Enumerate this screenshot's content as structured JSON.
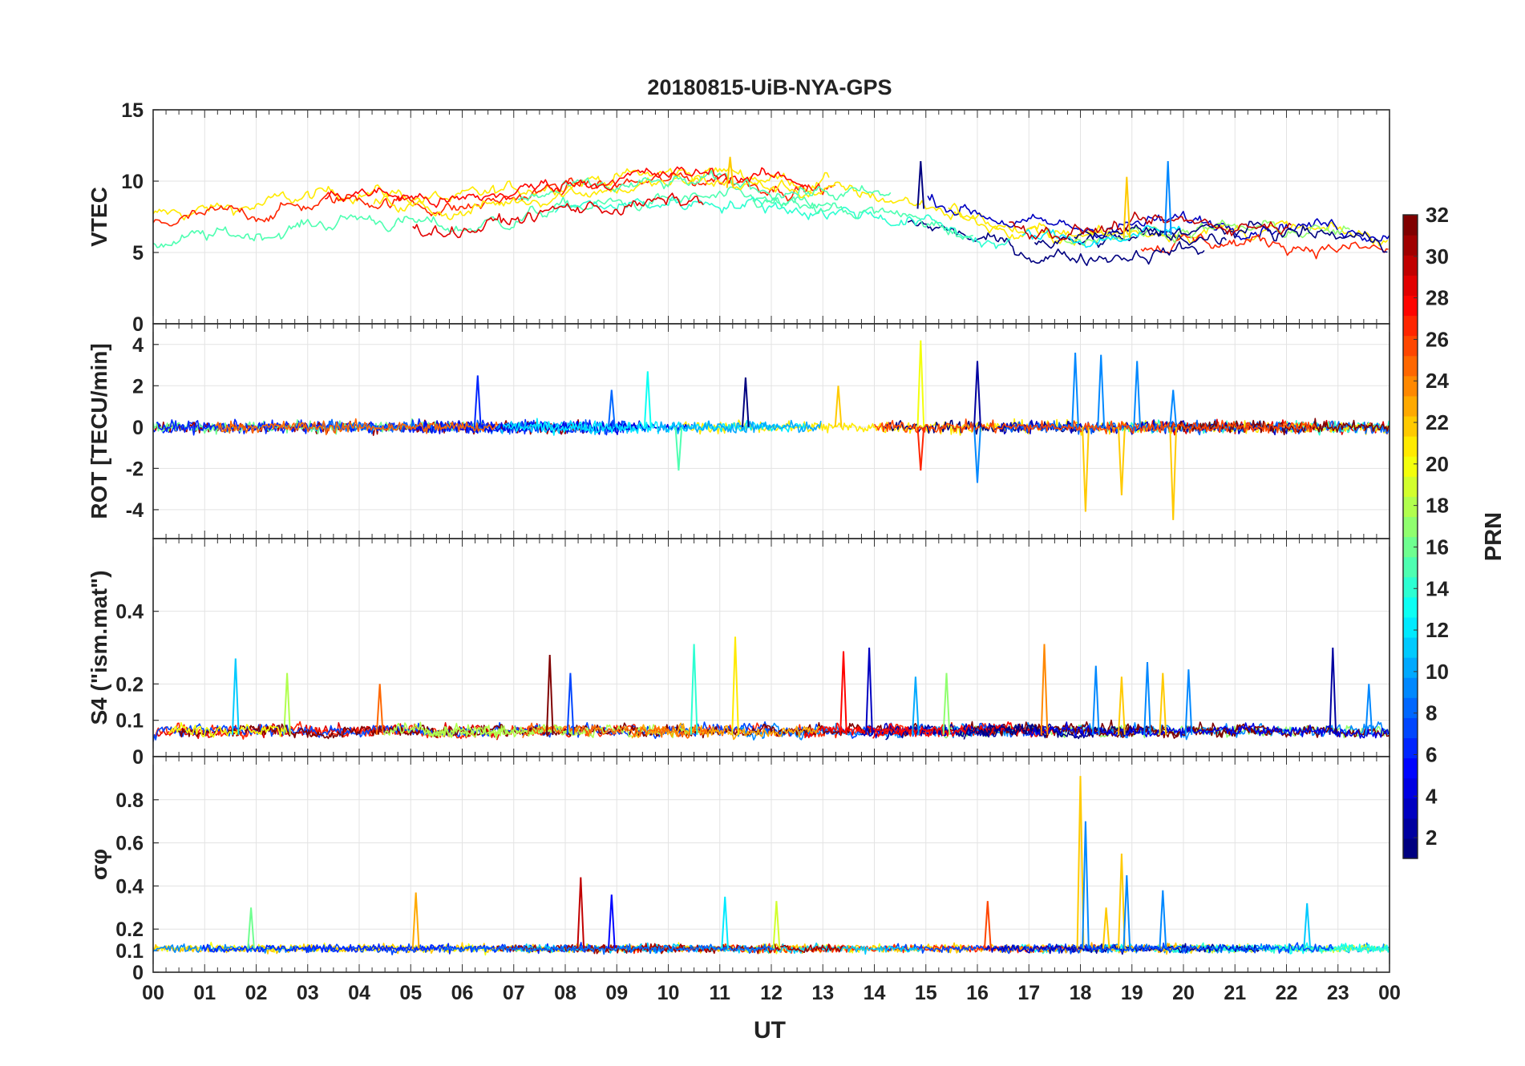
{
  "chart_data": {
    "type": "line",
    "title": "20180815-UiB-NYA-GPS",
    "xlabel": "UT",
    "x_ticks": [
      "00",
      "01",
      "02",
      "03",
      "04",
      "05",
      "06",
      "07",
      "08",
      "09",
      "10",
      "11",
      "12",
      "13",
      "14",
      "15",
      "16",
      "17",
      "18",
      "19",
      "20",
      "21",
      "22",
      "23",
      "00"
    ],
    "x_range_hours": [
      0,
      24
    ],
    "colorbar": {
      "label": "PRN",
      "range": [
        1,
        32
      ],
      "ticks": [
        "2",
        "4",
        "6",
        "8",
        "10",
        "12",
        "14",
        "16",
        "18",
        "20",
        "22",
        "24",
        "26",
        "28",
        "30",
        "32"
      ],
      "colormap": "jet"
    },
    "panels": [
      {
        "id": "vtec",
        "ylabel": "VTEC",
        "ylim": [
          0,
          15
        ],
        "yticks": [
          "0",
          "5",
          "10",
          "15"
        ],
        "trend": [
          [
            0,
            6.5
          ],
          [
            2,
            7.2
          ],
          [
            4,
            8.3
          ],
          [
            6,
            7.5
          ],
          [
            8,
            9.0
          ],
          [
            10,
            9.4
          ],
          [
            11,
            9.6
          ],
          [
            12,
            9.2
          ],
          [
            14,
            8.6
          ],
          [
            15,
            8.0
          ],
          [
            16,
            7.0
          ],
          [
            17,
            6.0
          ],
          [
            18,
            5.8
          ],
          [
            20,
            6.3
          ],
          [
            22,
            6.2
          ],
          [
            24,
            5.6
          ]
        ],
        "noise": 1.1,
        "base_n": 14,
        "spikes": [
          [
            14.9,
            11.4
          ],
          [
            18.9,
            10.3
          ],
          [
            19.7,
            11.4
          ],
          [
            11.2,
            11.7
          ]
        ]
      },
      {
        "id": "rot",
        "ylabel": "ROT [TECU/min]",
        "ylim": [
          -5.4,
          5.0
        ],
        "yticks": [
          "-4",
          "-2",
          "0",
          "2",
          "4"
        ],
        "spikes": [
          [
            6.3,
            2.5
          ],
          [
            9.6,
            2.7
          ],
          [
            14.9,
            4.2
          ],
          [
            14.9,
            -2.1
          ],
          [
            16.0,
            3.2
          ],
          [
            16.0,
            -2.7
          ],
          [
            17.9,
            3.6
          ],
          [
            18.1,
            -4.1
          ],
          [
            18.4,
            3.5
          ],
          [
            18.8,
            -3.3
          ],
          [
            19.1,
            3.2
          ],
          [
            19.8,
            -4.5
          ],
          [
            19.8,
            1.8
          ],
          [
            11.5,
            2.4
          ],
          [
            8.9,
            1.8
          ],
          [
            10.2,
            -2.1
          ],
          [
            13.3,
            2.0
          ]
        ]
      },
      {
        "id": "s4",
        "ylabel": "S4 (\"ism.mat\")",
        "ylim": [
          0,
          0.6
        ],
        "yticks": [
          "0",
          "0.1",
          "0.2",
          "0.4"
        ],
        "spikes": [
          [
            1.6,
            0.27
          ],
          [
            2.6,
            0.23
          ],
          [
            4.4,
            0.2
          ],
          [
            7.7,
            0.28
          ],
          [
            8.1,
            0.23
          ],
          [
            10.5,
            0.31
          ],
          [
            11.3,
            0.33
          ],
          [
            13.4,
            0.29
          ],
          [
            13.9,
            0.3
          ],
          [
            14.8,
            0.22
          ],
          [
            15.4,
            0.23
          ],
          [
            17.3,
            0.31
          ],
          [
            18.3,
            0.25
          ],
          [
            18.8,
            0.22
          ],
          [
            19.3,
            0.26
          ],
          [
            19.6,
            0.23
          ],
          [
            20.1,
            0.24
          ],
          [
            22.9,
            0.3
          ],
          [
            23.6,
            0.2
          ]
        ]
      },
      {
        "id": "sigma",
        "ylabel": "σφ",
        "ylim": [
          0,
          1.0
        ],
        "yticks": [
          "0",
          "0.1",
          "0.2",
          "0.4",
          "0.6",
          "0.8"
        ],
        "spikes": [
          [
            1.9,
            0.3
          ],
          [
            5.1,
            0.37
          ],
          [
            8.3,
            0.44
          ],
          [
            8.9,
            0.36
          ],
          [
            11.1,
            0.35
          ],
          [
            12.1,
            0.33
          ],
          [
            16.2,
            0.33
          ],
          [
            18.0,
            0.91
          ],
          [
            18.1,
            0.7
          ],
          [
            18.8,
            0.55
          ],
          [
            18.9,
            0.45
          ],
          [
            18.5,
            0.3
          ],
          [
            19.6,
            0.38
          ],
          [
            22.4,
            0.32
          ]
        ]
      }
    ]
  }
}
